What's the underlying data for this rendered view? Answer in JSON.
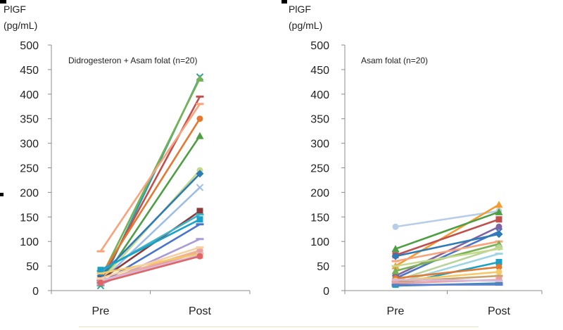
{
  "chart_data": [
    {
      "type": "line",
      "ylabel": [
        "PlGF",
        "(pg/mL)"
      ],
      "annotation": "Didrogesteron + Asam folat (n=20)",
      "categories": [
        "Pre",
        "Post"
      ],
      "yticks": [
        "0",
        "50",
        "100",
        "150",
        "200",
        "250",
        "300",
        "350",
        "400",
        "450",
        "500"
      ],
      "ylim": [
        0,
        500
      ],
      "grid": false,
      "series": [
        {
          "values": [
            10,
            435
          ],
          "color": "#2a9fae",
          "marker": "x"
        },
        {
          "values": [
            25,
            432
          ],
          "color": "#77b153",
          "marker": "triangle"
        },
        {
          "values": [
            20,
            395
          ],
          "color": "#c0504d",
          "marker": "dash"
        },
        {
          "values": [
            80,
            380
          ],
          "color": "#f9a37b",
          "marker": "dash"
        },
        {
          "values": [
            30,
            350
          ],
          "color": "#e37930",
          "marker": "circle"
        },
        {
          "values": [
            15,
            315
          ],
          "color": "#4e9e43",
          "marker": "triangle"
        },
        {
          "values": [
            20,
            245
          ],
          "color": "#c4d98d",
          "marker": "circle"
        },
        {
          "values": [
            30,
            238
          ],
          "color": "#2e7bb5",
          "marker": "diamond"
        },
        {
          "values": [
            18,
            210
          ],
          "color": "#9dbde6",
          "marker": "x"
        },
        {
          "values": [
            22,
            162
          ],
          "color": "#8b3a3a",
          "marker": "square"
        },
        {
          "values": [
            40,
            155
          ],
          "color": "#3fb3c9",
          "marker": "dash"
        },
        {
          "values": [
            42,
            145
          ],
          "color": "#1aa1c7",
          "marker": "square"
        },
        {
          "values": [
            15,
            135
          ],
          "color": "#4a74c9",
          "marker": "dash"
        },
        {
          "values": [
            12,
            105
          ],
          "color": "#a99bd6",
          "marker": "dash"
        },
        {
          "values": [
            20,
            82
          ],
          "color": "#f2b28e",
          "marker": "circle"
        },
        {
          "values": [
            18,
            78
          ],
          "color": "#e8a0a0",
          "marker": "square"
        },
        {
          "values": [
            35,
            75
          ],
          "color": "#f3c96a",
          "marker": "dash"
        },
        {
          "values": [
            20,
            72
          ],
          "color": "#d7b9dd",
          "marker": "x"
        },
        {
          "values": [
            16,
            70
          ],
          "color": "#e06666",
          "marker": "circle"
        },
        {
          "values": [
            25,
            88
          ],
          "color": "#f6cfa3",
          "marker": "dash"
        }
      ]
    },
    {
      "type": "line",
      "ylabel": [
        "PlGF",
        "(pg/mL)"
      ],
      "annotation": "Asam folat (n=20)",
      "categories": [
        "Pre",
        "Post"
      ],
      "yticks": [
        "0",
        "50",
        "100",
        "150",
        "200",
        "250",
        "300",
        "350",
        "400",
        "450",
        "500"
      ],
      "ylim": [
        0,
        500
      ],
      "grid": false,
      "series": [
        {
          "values": [
            130,
            162
          ],
          "color": "#b8cde8",
          "marker": "circle"
        },
        {
          "values": [
            50,
            175
          ],
          "color": "#f39c32",
          "marker": "triangle"
        },
        {
          "values": [
            85,
            160
          ],
          "color": "#4e9e43",
          "marker": "triangle"
        },
        {
          "values": [
            72,
            145
          ],
          "color": "#c0504d",
          "marker": "square"
        },
        {
          "values": [
            30,
            130
          ],
          "color": "#8064a2",
          "marker": "circle"
        },
        {
          "values": [
            25,
            120
          ],
          "color": "#4a74c9",
          "marker": "x"
        },
        {
          "values": [
            70,
            115
          ],
          "color": "#2e7bb5",
          "marker": "diamond"
        },
        {
          "values": [
            60,
            100
          ],
          "color": "#f9a37b",
          "marker": "dash"
        },
        {
          "values": [
            40,
            95
          ],
          "color": "#77b153",
          "marker": "triangle"
        },
        {
          "values": [
            20,
            88
          ],
          "color": "#b8d49a",
          "marker": "circle"
        },
        {
          "values": [
            50,
            85
          ],
          "color": "#c4d98d",
          "marker": "dash"
        },
        {
          "values": [
            15,
            75
          ],
          "color": "#9dd5e3",
          "marker": "dash"
        },
        {
          "values": [
            12,
            58
          ],
          "color": "#1aa1c7",
          "marker": "square"
        },
        {
          "values": [
            25,
            48
          ],
          "color": "#e37930",
          "marker": "circle"
        },
        {
          "values": [
            20,
            38
          ],
          "color": "#f3c96a",
          "marker": "circle"
        },
        {
          "values": [
            18,
            30
          ],
          "color": "#c9a36b",
          "marker": "dash"
        },
        {
          "values": [
            15,
            22
          ],
          "color": "#e8a0a0",
          "marker": "square"
        },
        {
          "values": [
            22,
            20
          ],
          "color": "#d7b9dd",
          "marker": "dash"
        },
        {
          "values": [
            10,
            15
          ],
          "color": "#3f8fa8",
          "marker": "dash"
        },
        {
          "values": [
            12,
            12
          ],
          "color": "#5b7ed1",
          "marker": "dash"
        }
      ]
    }
  ]
}
